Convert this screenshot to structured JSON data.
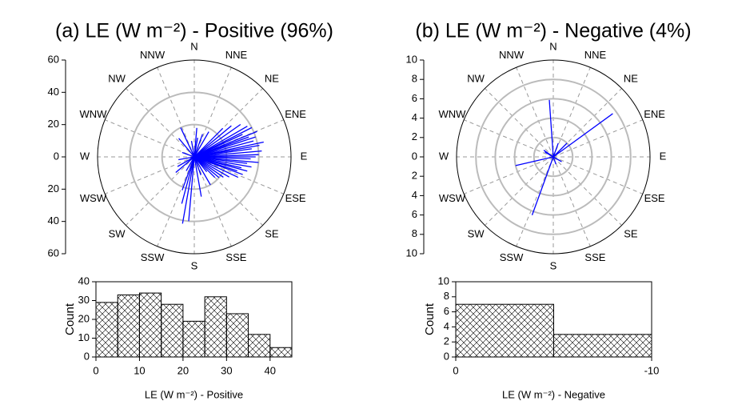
{
  "chart_data": [
    {
      "type": "polar",
      "title": "(a) LE (W m⁻²) - Positive (96%)",
      "directions": [
        "N",
        "NNE",
        "NE",
        "ENE",
        "E",
        "ESE",
        "SE",
        "SSE",
        "S",
        "SSW",
        "SW",
        "WSW",
        "W",
        "WNW",
        "NW",
        "NNW"
      ],
      "angle": [
        5,
        10,
        20,
        30,
        45,
        50,
        55,
        60,
        63,
        65,
        68,
        70,
        72,
        75,
        78,
        80,
        82,
        85,
        88,
        90,
        92,
        95,
        97,
        100,
        103,
        105,
        108,
        110,
        115,
        120,
        125,
        130,
        135,
        140,
        150,
        160,
        170,
        185,
        190,
        195,
        200,
        210,
        230,
        240,
        260,
        290,
        320,
        335,
        350
      ],
      "values": [
        18,
        12,
        15,
        18,
        25,
        30,
        35,
        38,
        40,
        33,
        42,
        36,
        40,
        38,
        44,
        41,
        36,
        42,
        40,
        38,
        35,
        40,
        33,
        36,
        30,
        34,
        28,
        32,
        30,
        25,
        22,
        20,
        18,
        12,
        20,
        12,
        25,
        40,
        42,
        30,
        22,
        10,
        15,
        12,
        10,
        8,
        15,
        20,
        10
      ],
      "rlim": [
        0,
        60
      ],
      "rticks": [
        0,
        20,
        40,
        60
      ],
      "color": "#0000ff"
    },
    {
      "type": "polar",
      "title": "(b) LE (W m⁻²) - Negative (4%)",
      "directions": [
        "N",
        "NNE",
        "NE",
        "ENE",
        "E",
        "ESE",
        "SE",
        "SSE",
        "S",
        "SSW",
        "SW",
        "WSW",
        "W",
        "WNW",
        "NW",
        "NNW"
      ],
      "angle": [
        356,
        54,
        200,
        257,
        305,
        45,
        120,
        160,
        20,
        300
      ],
      "values": [
        5.9,
        7.6,
        6.4,
        4,
        1.2,
        2,
        1,
        0.8,
        1.5,
        1
      ],
      "rlim": [
        0,
        10
      ],
      "rticks": [
        0,
        2,
        4,
        6,
        8,
        10
      ],
      "color": "#0000ff"
    },
    {
      "type": "histogram",
      "bins": [
        0,
        5,
        10,
        15,
        20,
        25,
        30,
        35,
        40,
        45
      ],
      "values": [
        29,
        33,
        34,
        28,
        19,
        32,
        23,
        12,
        5
      ],
      "xlim": [
        0,
        45
      ],
      "xticks": [
        0,
        10,
        20,
        30,
        40
      ],
      "ylim": [
        0,
        40
      ],
      "yticks": [
        0,
        10,
        20,
        30,
        40
      ],
      "xlabel": "LE (W m⁻²) - Positive",
      "ylabel": "Count"
    },
    {
      "type": "histogram",
      "bins": [
        0,
        -5,
        -10
      ],
      "values": [
        7,
        3
      ],
      "xlim": [
        0,
        -10
      ],
      "xticks": [
        0,
        -10
      ],
      "ylim": [
        0,
        10
      ],
      "yticks": [
        0,
        2,
        4,
        6,
        8,
        10
      ],
      "xlabel": "LE (W m⁻²) - Negative",
      "ylabel": "Count"
    }
  ]
}
